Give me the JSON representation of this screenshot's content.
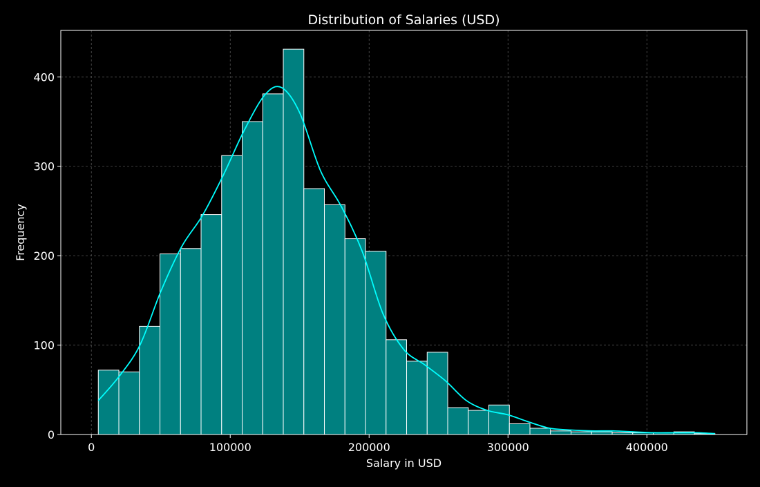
{
  "chart_data": {
    "type": "bar",
    "subtype": "histogram-with-kde",
    "title": "Distribution of Salaries (USD)",
    "xlabel": "Salary in USD",
    "ylabel": "Frequency",
    "xlim": [
      -22000,
      472000
    ],
    "ylim": [
      0,
      452
    ],
    "xticks": [
      0,
      100000,
      200000,
      300000,
      400000
    ],
    "yticks": [
      0,
      100,
      200,
      300,
      400
    ],
    "grid": true,
    "bin_edges": [
      5000,
      19800,
      34600,
      49400,
      64200,
      79000,
      93800,
      108600,
      123400,
      138200,
      153000,
      167800,
      182600,
      197400,
      212200,
      227000,
      241800,
      256600,
      271400,
      286200,
      301000,
      315800,
      330600,
      345400,
      360200,
      375000,
      389800,
      404600,
      419400,
      434200,
      449000
    ],
    "values": [
      72,
      70,
      121,
      202,
      208,
      246,
      312,
      350,
      381,
      431,
      275,
      257,
      219,
      205,
      106,
      82,
      92,
      30,
      27,
      33,
      12,
      7,
      4,
      3,
      3,
      2,
      2,
      2,
      3,
      1
    ],
    "kde": {
      "x": [
        5000,
        20000,
        35000,
        50000,
        65000,
        80000,
        95000,
        110000,
        125000,
        137000,
        150000,
        165000,
        180000,
        195000,
        210000,
        225000,
        240000,
        255000,
        270000,
        285000,
        300000,
        315000,
        330000,
        345000,
        360000,
        375000,
        390000,
        405000,
        420000,
        435000,
        449000
      ],
      "y": [
        38,
        65,
        100,
        160,
        210,
        245,
        290,
        340,
        380,
        388,
        360,
        295,
        255,
        205,
        135,
        95,
        78,
        60,
        38,
        27,
        22,
        14,
        7,
        5,
        4,
        4,
        3,
        2,
        2,
        2,
        1
      ]
    },
    "colors": {
      "bar_fill": "#008080",
      "bar_edge": "#ffffff",
      "kde_line": "#00ffff",
      "background": "#000000",
      "grid": "#555555",
      "text": "#ffffff"
    }
  }
}
